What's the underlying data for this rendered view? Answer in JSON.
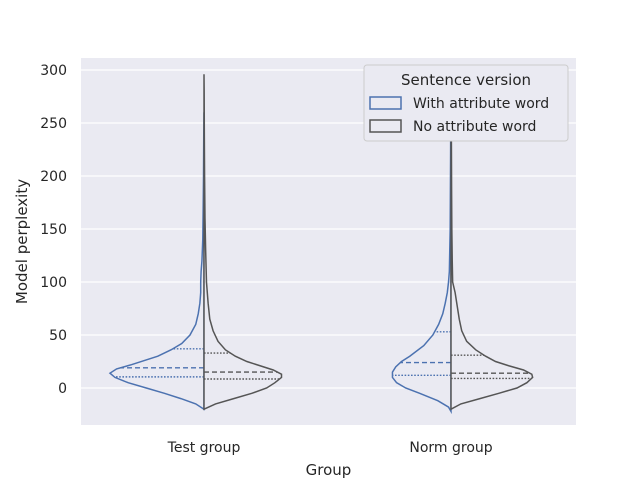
{
  "chart_data": {
    "type": "violin",
    "title": "",
    "xlabel": "Group",
    "ylabel": "Model perplexity",
    "categories": [
      "Test group",
      "Norm group"
    ],
    "ylim": [
      -35,
      308
    ],
    "yticks": [
      0,
      50,
      100,
      150,
      200,
      250,
      300
    ],
    "grid": true,
    "split": true,
    "legend": {
      "title": "Sentence version",
      "position": "top-right",
      "entries": [
        {
          "label": "With attribute word",
          "color": "#4c72b0"
        },
        {
          "label": "No attribute word",
          "color": "#555555"
        }
      ]
    },
    "series": [
      {
        "name": "With attribute word",
        "side": "left",
        "color": "#4c72b0",
        "violins": [
          {
            "category": "Test group",
            "quartiles": [
              10.5,
              19,
              37
            ],
            "density": [
              [
                -20,
                0
              ],
              [
                -15,
                10
              ],
              [
                -10,
                28
              ],
              [
                -5,
                48
              ],
              [
                0,
                70
              ],
              [
                5,
                92
              ],
              [
                10,
                108
              ],
              [
                14,
                114
              ],
              [
                18,
                106
              ],
              [
                22,
                88
              ],
              [
                26,
                72
              ],
              [
                30,
                56
              ],
              [
                36,
                40
              ],
              [
                42,
                27
              ],
              [
                50,
                17
              ],
              [
                60,
                10
              ],
              [
                70,
                7
              ],
              [
                80,
                5
              ],
              [
                90,
                4
              ],
              [
                100,
                4
              ],
              [
                110,
                3.5
              ],
              [
                120,
                2.5
              ],
              [
                140,
                1.5
              ],
              [
                170,
                1
              ],
              [
                200,
                0.6
              ],
              [
                240,
                0.3
              ],
              [
                260,
                0
              ]
            ]
          },
          {
            "category": "Norm group",
            "quartiles": [
              12,
              24,
              53
            ],
            "density": [
              [
                -22,
                0
              ],
              [
                -18,
                3
              ],
              [
                -12,
                16
              ],
              [
                -5,
                38
              ],
              [
                0,
                55
              ],
              [
                5,
                66
              ],
              [
                10,
                71
              ],
              [
                15,
                71
              ],
              [
                20,
                67
              ],
              [
                25,
                60
              ],
              [
                30,
                50
              ],
              [
                40,
                33
              ],
              [
                50,
                22
              ],
              [
                60,
                15
              ],
              [
                70,
                10
              ],
              [
                80,
                7
              ],
              [
                90,
                4.5
              ],
              [
                100,
                3
              ],
              [
                110,
                2
              ],
              [
                130,
                1.5
              ],
              [
                150,
                1
              ],
              [
                180,
                0.8
              ],
              [
                220,
                0.5
              ],
              [
                260,
                0.3
              ],
              [
                285,
                0
              ]
            ]
          }
        ]
      },
      {
        "name": "No attribute word",
        "side": "right",
        "color": "#555555",
        "violins": [
          {
            "category": "Test group",
            "quartiles": [
              8.5,
              15,
              33
            ],
            "density": [
              [
                -20,
                0
              ],
              [
                -15,
                14
              ],
              [
                -10,
                36
              ],
              [
                -5,
                58
              ],
              [
                0,
                76
              ],
              [
                5,
                86
              ],
              [
                10,
                94
              ],
              [
                13,
                94
              ],
              [
                17,
                84
              ],
              [
                21,
                68
              ],
              [
                25,
                52
              ],
              [
                30,
                38
              ],
              [
                36,
                26
              ],
              [
                44,
                17
              ],
              [
                54,
                11
              ],
              [
                65,
                7
              ],
              [
                80,
                5
              ],
              [
                100,
                3
              ],
              [
                130,
                2
              ],
              [
                160,
                1.2
              ],
              [
                200,
                0.7
              ],
              [
                240,
                0.4
              ],
              [
                280,
                0.2
              ],
              [
                296,
                0
              ]
            ]
          },
          {
            "category": "Norm group",
            "quartiles": [
              9,
              14,
              31
            ],
            "density": [
              [
                -20,
                0
              ],
              [
                -15,
                12
              ],
              [
                -10,
                35
              ],
              [
                -5,
                58
              ],
              [
                0,
                80
              ],
              [
                5,
                92
              ],
              [
                10,
                99
              ],
              [
                13,
                98
              ],
              [
                17,
                88
              ],
              [
                21,
                70
              ],
              [
                25,
                54
              ],
              [
                30,
                42
              ],
              [
                36,
                30
              ],
              [
                44,
                19
              ],
              [
                54,
                13
              ],
              [
                65,
                10
              ],
              [
                80,
                7
              ],
              [
                90,
                5
              ],
              [
                100,
                2
              ],
              [
                120,
                1.5
              ],
              [
                150,
                1
              ],
              [
                190,
                0.7
              ],
              [
                230,
                0.5
              ],
              [
                270,
                0.3
              ],
              [
                285,
                0
              ]
            ]
          }
        ]
      }
    ]
  }
}
